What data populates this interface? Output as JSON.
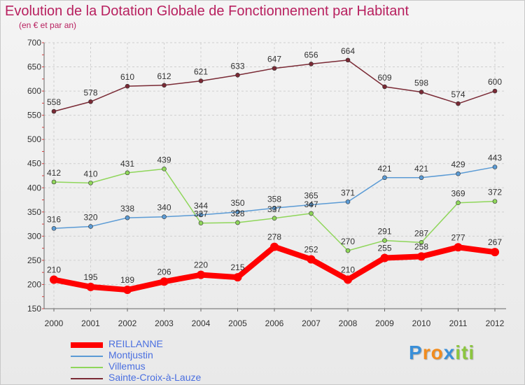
{
  "chart_data": {
    "type": "line",
    "title": "Evolution de la Dotation Globale de Fonctionnement par Habitant",
    "subtitle": "(en € et par an)",
    "x": [
      "2000",
      "2001",
      "2002",
      "2003",
      "2004",
      "2005",
      "2006",
      "2007",
      "2008",
      "2009",
      "2010",
      "2011",
      "2012"
    ],
    "ylim": [
      150,
      700
    ],
    "yticks": [
      150,
      200,
      250,
      300,
      350,
      400,
      450,
      500,
      550,
      600,
      650,
      700
    ],
    "grid": true,
    "legend_position": "bottom-left",
    "series": [
      {
        "name": "Sainte-Croix-à-Lauze",
        "color": "#7a2a35",
        "values": [
          558,
          578,
          610,
          612,
          621,
          633,
          647,
          656,
          664,
          609,
          598,
          574,
          600
        ]
      },
      {
        "name": "Villemus",
        "color": "#8fd65a",
        "values": [
          412,
          410,
          431,
          439,
          327,
          328,
          337,
          347,
          270,
          291,
          287,
          369,
          372
        ]
      },
      {
        "name": "Montjustin",
        "color": "#5b9bd5",
        "values": [
          316,
          320,
          338,
          340,
          344,
          350,
          358,
          365,
          371,
          421,
          421,
          429,
          443
        ]
      },
      {
        "name": "REILLANNE",
        "color": "#ff0000",
        "values": [
          210,
          195,
          189,
          206,
          220,
          215,
          278,
          252,
          210,
          255,
          258,
          277,
          267
        ]
      }
    ]
  },
  "legend": [
    {
      "label": "REILLANNE",
      "color": "#ff0000"
    },
    {
      "label": "Montjustin",
      "color": "#5b9bd5"
    },
    {
      "label": "Villemus",
      "color": "#8fd65a"
    },
    {
      "label": "Sainte-Croix-à-Lauze",
      "color": "#7a2a35"
    }
  ],
  "brand": {
    "letters": [
      "P",
      "r",
      "o",
      "x",
      "i",
      "t",
      "i"
    ],
    "colors": [
      "#3a8fd8",
      "#f28c1e",
      "#f28c1e",
      "#3a8fd8",
      "#8cc63f",
      "#8cc63f",
      "#8cc63f"
    ]
  }
}
